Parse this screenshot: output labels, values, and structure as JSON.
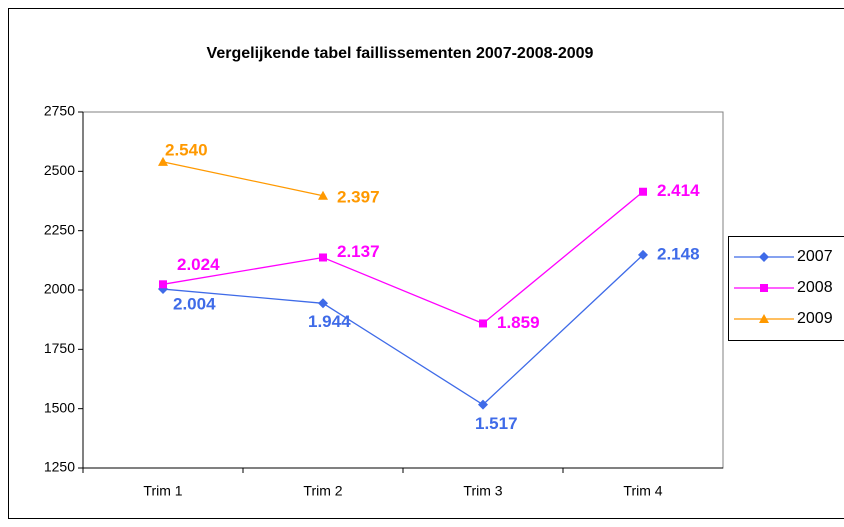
{
  "chart_data": {
    "type": "line",
    "title": "Vergelijkende tabel faillissementen 2007-2008-2009",
    "categories": [
      "Trim 1",
      "Trim 2",
      "Trim 3",
      "Trim 4"
    ],
    "series": [
      {
        "name": "2007",
        "color": "#3f6be8",
        "marker": "diamond",
        "values": [
          2004,
          1944,
          1517,
          2148
        ],
        "value_labels": [
          "2.004",
          "1.944",
          "1.517",
          "2.148"
        ]
      },
      {
        "name": "2008",
        "color": "#ff00ff",
        "marker": "square",
        "values": [
          2024,
          2137,
          1859,
          2414
        ],
        "value_labels": [
          "2.024",
          "2.137",
          "1.859",
          "2.414"
        ]
      },
      {
        "name": "2009",
        "color": "#ff9900",
        "marker": "triangle",
        "values": [
          2540,
          2397,
          null,
          null
        ],
        "value_labels": [
          "2.540",
          "2.397",
          null,
          null
        ]
      }
    ],
    "ylim": [
      1250,
      2750
    ],
    "yticks": [
      1250,
      1500,
      1750,
      2000,
      2250,
      2500,
      2750
    ],
    "grid": false,
    "legend": "right"
  }
}
